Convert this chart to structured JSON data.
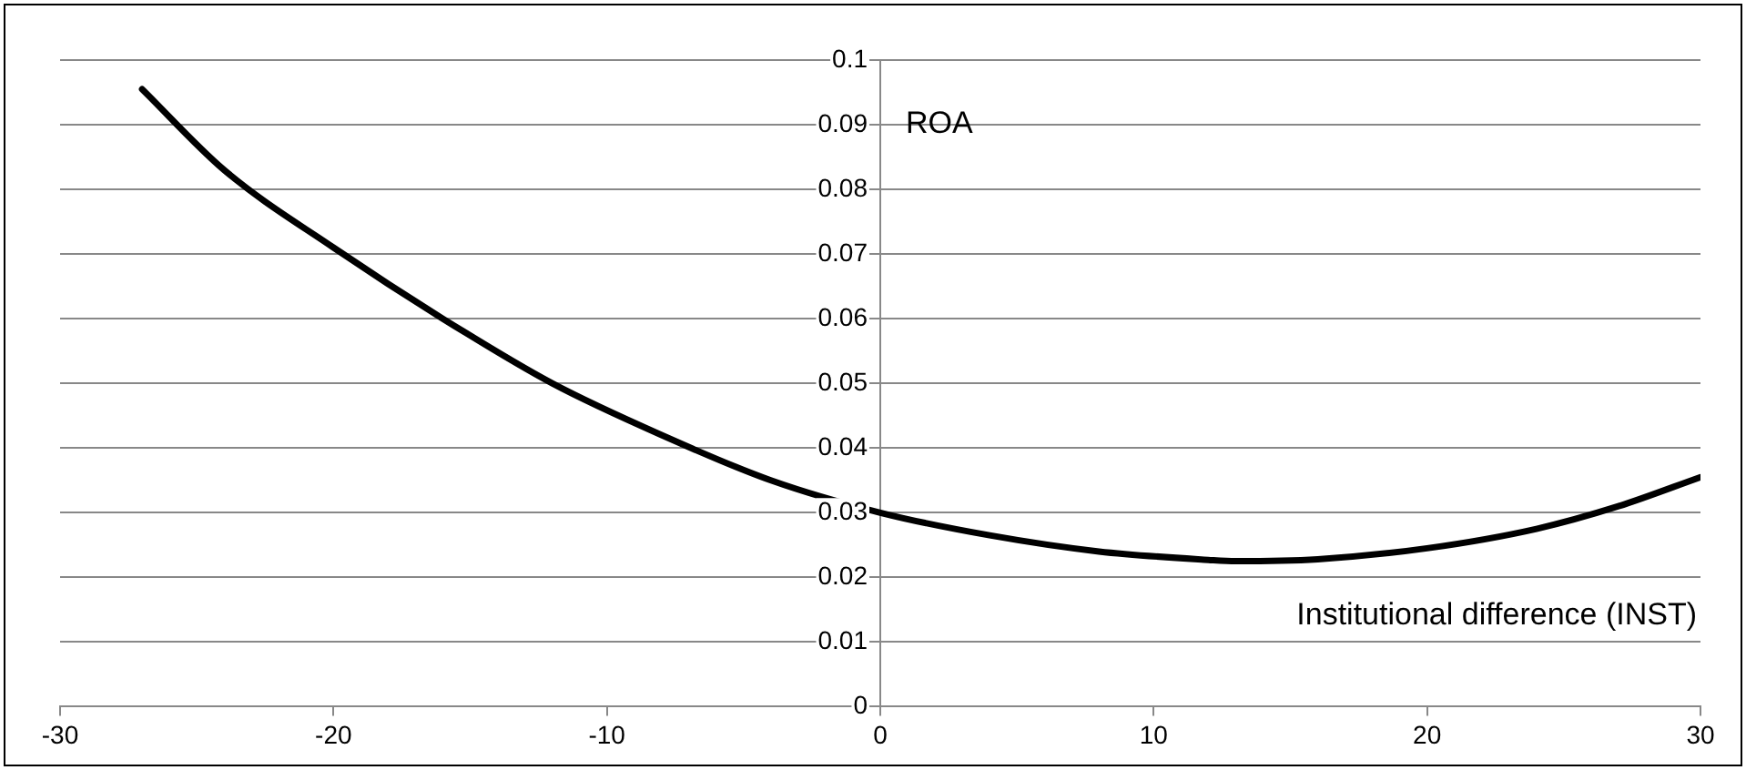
{
  "chart_data": {
    "type": "line",
    "xlabel": "Institutional difference (INST)",
    "ylabel": "ROA",
    "x": [
      -27,
      -24,
      -20,
      -16,
      -12,
      -8,
      -4,
      0,
      4,
      8,
      12,
      13,
      16,
      20,
      24,
      27,
      30
    ],
    "series": [
      {
        "color": "#000000",
        "values": [
          0.0955,
          0.083,
          0.071,
          0.06,
          0.05,
          0.042,
          0.035,
          0.03,
          0.0265,
          0.024,
          0.0227,
          0.0225,
          0.0228,
          0.0245,
          0.0275,
          0.031,
          0.0355
        ]
      }
    ],
    "xlim": [
      -30,
      30
    ],
    "xticks": [
      -30,
      -20,
      -10,
      0,
      10,
      20,
      30
    ],
    "ylim": [
      0,
      0.1
    ],
    "yticks": [
      0,
      0.01,
      0.02,
      0.03,
      0.04,
      0.05,
      0.06,
      0.07,
      0.08,
      0.09,
      0.1
    ],
    "grid": "y",
    "legend": false,
    "marker": "none",
    "line_style": "solid"
  }
}
